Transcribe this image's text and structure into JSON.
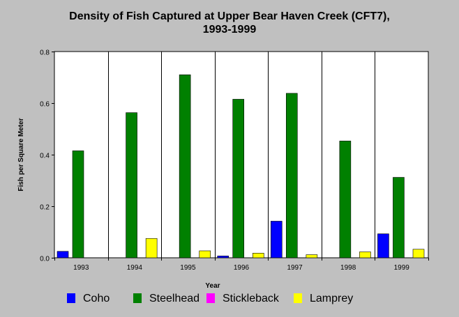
{
  "chart_data": {
    "type": "bar",
    "title_lines": [
      "Density of Fish Captured at Upper Bear Haven Creek (CFT7),",
      "1993-1999"
    ],
    "xlabel": "Year",
    "ylabel": "Fish per Square Meter",
    "ylim": [
      0,
      0.8
    ],
    "yticks": [
      0.0,
      0.2,
      0.4,
      0.6,
      0.8
    ],
    "ytick_labels": [
      "0.0",
      "0.2",
      "0.4",
      "0.6",
      "0.8"
    ],
    "categories": [
      "1993",
      "1994",
      "1995",
      "1996",
      "1997",
      "1998",
      "1999"
    ],
    "grid": "vertical category separators",
    "legend_position": "bottom",
    "series": [
      {
        "name": "Coho",
        "color": "#0000ff",
        "values": [
          0.025,
          0,
          0,
          0.007,
          0.142,
          0,
          0.093
        ]
      },
      {
        "name": "Steelhead",
        "color": "#008000",
        "values": [
          0.415,
          0.563,
          0.71,
          0.615,
          0.638,
          0.453,
          0.312
        ]
      },
      {
        "name": "Stickleback",
        "color": "#ff00ff",
        "values": [
          0,
          0,
          0,
          0,
          0,
          0,
          0
        ]
      },
      {
        "name": "Lamprey",
        "color": "#ffff00",
        "values": [
          0,
          0.075,
          0.027,
          0.018,
          0.012,
          0.023,
          0.033
        ]
      }
    ]
  }
}
